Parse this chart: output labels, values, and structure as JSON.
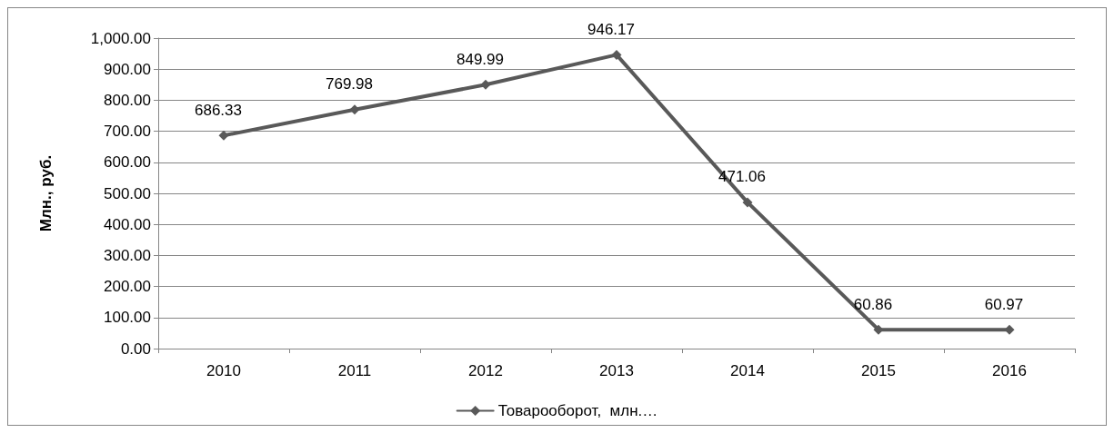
{
  "chart_data": {
    "type": "line",
    "ylabel": "Млн., руб.",
    "categories": [
      "2010",
      "2011",
      "2012",
      "2013",
      "2014",
      "2015",
      "2016"
    ],
    "series": [
      {
        "name": "Товарооборот,  млн.…",
        "color": "#595959",
        "values": [
          686.33,
          769.98,
          849.99,
          946.17,
          471.06,
          60.86,
          60.97
        ]
      }
    ],
    "ylim": [
      0,
      1000
    ],
    "yticks": [
      {
        "value": 0,
        "label": "0.00"
      },
      {
        "value": 100,
        "label": "100.00"
      },
      {
        "value": 200,
        "label": "200.00"
      },
      {
        "value": 300,
        "label": "300.00"
      },
      {
        "value": 400,
        "label": "400.00"
      },
      {
        "value": 500,
        "label": "500.00"
      },
      {
        "value": 600,
        "label": "600.00"
      },
      {
        "value": 700,
        "label": "700.00"
      },
      {
        "value": 800,
        "label": "800.00"
      },
      {
        "value": 900,
        "label": "900.00"
      },
      {
        "value": 1000,
        "label": "1,000.00"
      }
    ],
    "grid": "y",
    "legend": "bottom",
    "marker": "diamond",
    "line_style": "solid",
    "data_labels": true
  }
}
